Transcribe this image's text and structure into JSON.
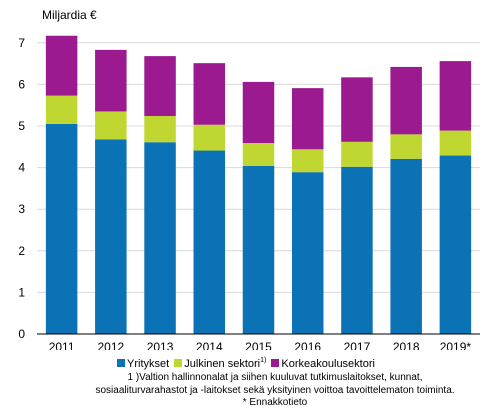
{
  "chart_data": {
    "type": "bar",
    "stacked": true,
    "unit_label": "Miljardia €",
    "categories": [
      "2011",
      "2012",
      "2013",
      "2014",
      "2015",
      "2016",
      "2017",
      "2018",
      "2019*"
    ],
    "series": [
      {
        "name": "Yritykset",
        "color": "#0b72b5",
        "values": [
          5.05,
          4.68,
          4.61,
          4.41,
          4.04,
          3.89,
          4.02,
          4.21,
          4.29
        ]
      },
      {
        "name": "Julkinen sektori",
        "color": "#bfd730",
        "values": [
          0.68,
          0.67,
          0.63,
          0.62,
          0.55,
          0.55,
          0.6,
          0.59,
          0.6
        ]
      },
      {
        "name": "Korkeakoulusektori",
        "color": "#9b1a8f",
        "values": [
          1.44,
          1.48,
          1.44,
          1.48,
          1.47,
          1.47,
          1.55,
          1.62,
          1.67
        ]
      }
    ],
    "ylim": [
      0,
      7.5
    ],
    "yticks": [
      0,
      1,
      2,
      3,
      4,
      5,
      6,
      7
    ],
    "grid": true,
    "legend_position": "bottom"
  },
  "legend_sup": "1)",
  "footnotes": [
    "1 )Valtion hallinnonalat ja siihen kuuluvat tutkimuslaitokset, kunnat,",
    "sosiaaliturvarahastot ja -laitokset sekä yksityinen voittoa tavoittelematon toiminta.",
    "* Ennakkotieto"
  ]
}
